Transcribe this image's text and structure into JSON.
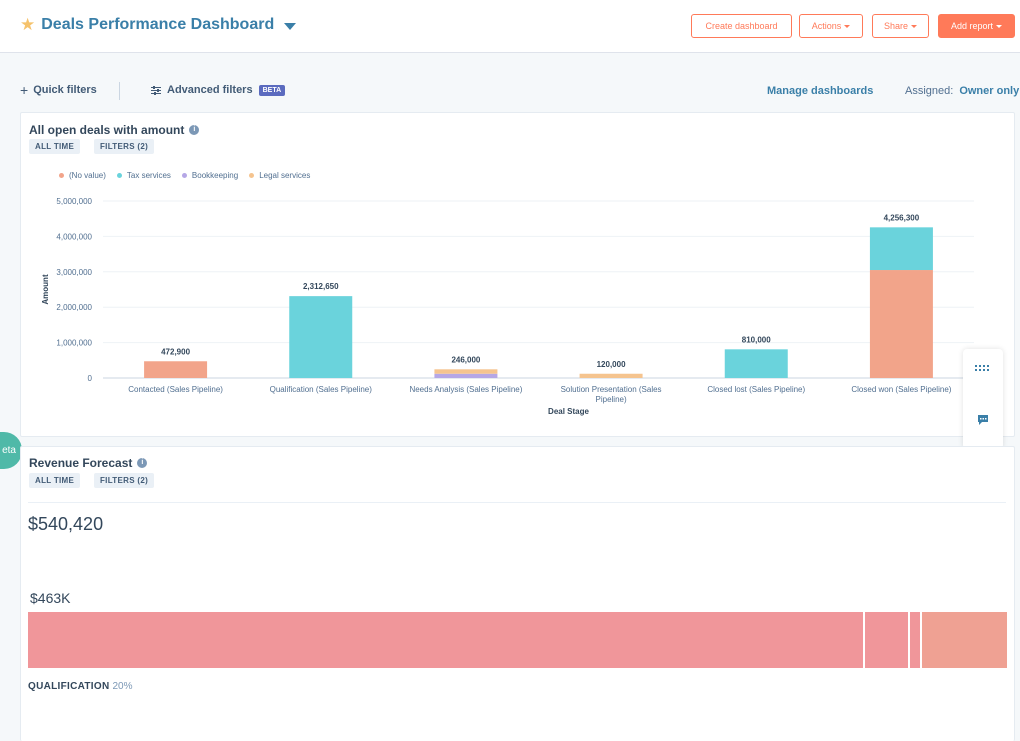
{
  "header": {
    "title": "Deals Performance Dashboard",
    "buttons": {
      "create": "Create dashboard",
      "actions": "Actions",
      "share": "Share",
      "add_report": "Add report"
    }
  },
  "filters": {
    "quick": "Quick filters",
    "advanced": "Advanced filters",
    "beta": "BETA",
    "manage": "Manage dashboards",
    "assigned_label": "Assigned:",
    "assigned_value": "Owner only"
  },
  "report1": {
    "title": "All open deals with amount",
    "tags": [
      "ALL TIME",
      "FILTERS (2)"
    ]
  },
  "chart_data": {
    "type": "bar",
    "stacked": true,
    "xlabel": "Deal Stage",
    "ylabel": "Amount",
    "ylim": [
      0,
      5000000
    ],
    "yticks": [
      "0",
      "1,000,000",
      "2,000,000",
      "3,000,000",
      "4,000,000",
      "5,000,000"
    ],
    "ytick_values": [
      0,
      1000000,
      2000000,
      3000000,
      4000000,
      5000000
    ],
    "categories": [
      [
        "Contacted (Sales Pipeline)"
      ],
      [
        "Qualification (Sales Pipeline)"
      ],
      [
        "Needs Analysis (Sales Pipeline)"
      ],
      [
        "Solution Presentation (Sales",
        "Pipeline)"
      ],
      [
        "Closed lost (Sales Pipeline)"
      ],
      [
        "Closed won (Sales Pipeline)"
      ]
    ],
    "totals": [
      "472,900",
      "2,312,650",
      "246,000",
      "120,000",
      "810,000",
      "4,256,300"
    ],
    "series": [
      {
        "name": "(No value)",
        "color": "#f2a48a",
        "values": [
          472900,
          0,
          0,
          0,
          0,
          3050000
        ]
      },
      {
        "name": "Tax services",
        "color": "#6ad3dc",
        "values": [
          0,
          2312650,
          0,
          0,
          810000,
          1206300
        ]
      },
      {
        "name": "Bookkeeping",
        "color": "#b5a7e6",
        "values": [
          0,
          0,
          120000,
          0,
          0,
          0
        ]
      },
      {
        "name": "Legal services",
        "color": "#f5c48f",
        "values": [
          0,
          0,
          126000,
          120000,
          0,
          0
        ]
      }
    ],
    "grid": true,
    "legend_position": "top-left"
  },
  "report2": {
    "title": "Revenue Forecast",
    "tags": [
      "ALL TIME",
      "FILTERS (2)"
    ],
    "total": "$540,420",
    "bar_label": "$463K",
    "segments": [
      {
        "color": "#f0969a",
        "share": 0.855
      },
      {
        "color": "#f0969a",
        "share": 0.046
      },
      {
        "color": "#f0969a",
        "share": 0.012
      },
      {
        "color": "#efa193",
        "share": 0.087
      }
    ],
    "stage": "QUALIFICATION",
    "stage_pct": "20%"
  },
  "side": {
    "grid_icon": "grid-icon",
    "chat_icon": "chat-icon",
    "beta_tab": "eta"
  }
}
